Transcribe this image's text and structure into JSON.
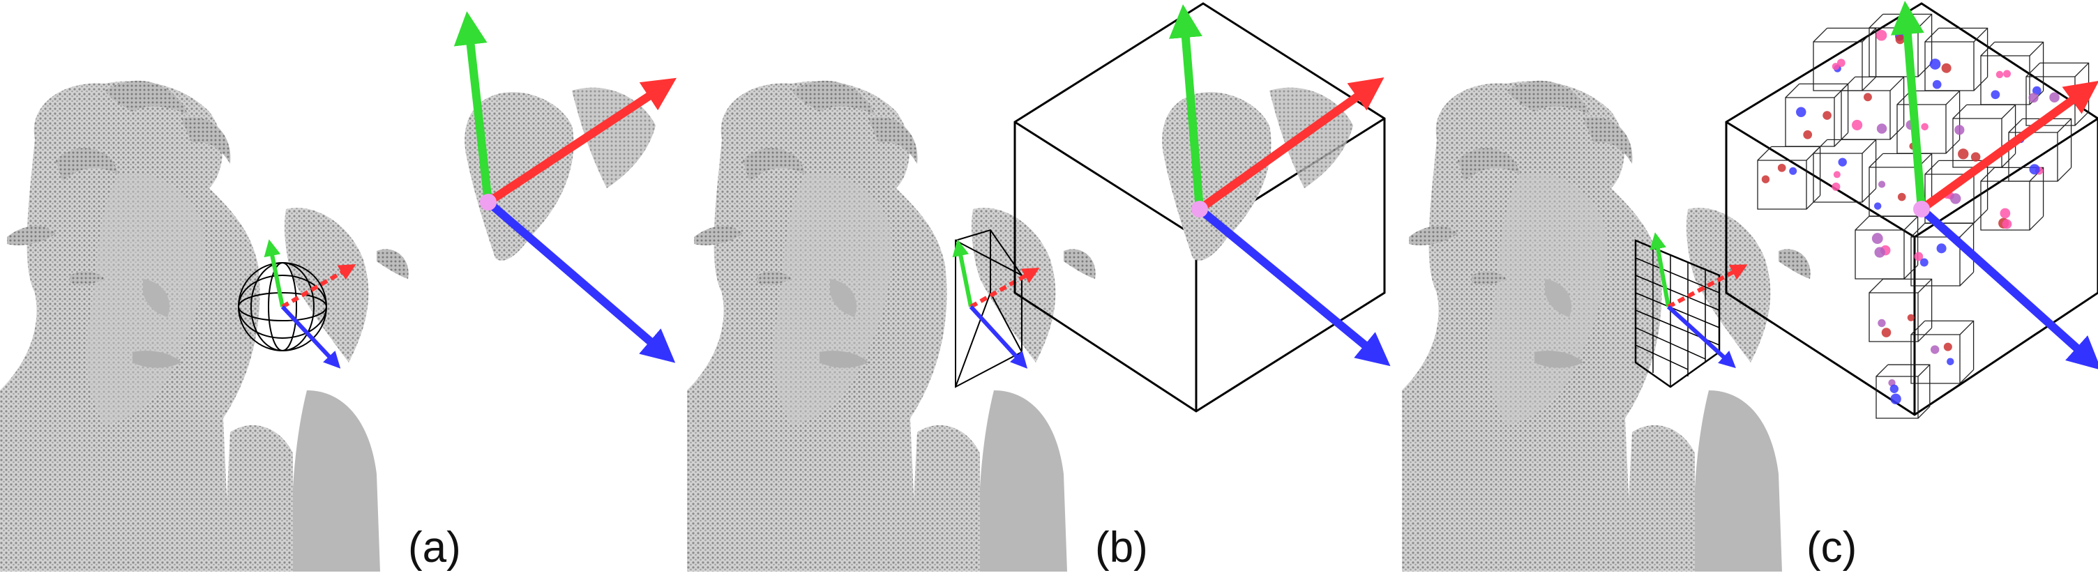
{
  "panels": [
    {
      "label": "(a)",
      "mode": "sphere"
    },
    {
      "label": "(b)",
      "mode": "cube"
    },
    {
      "label": "(c)",
      "mode": "octree"
    }
  ],
  "axis_colors": {
    "x": "#ff3333",
    "y": "#33dd33",
    "z": "#3333ff",
    "origin": "#f0a0f0"
  },
  "point_color": "#9a9a9a",
  "leaf_point_colors": [
    "#3b3bff",
    "#cc3333",
    "#b060c0",
    "#ff55aa"
  ]
}
